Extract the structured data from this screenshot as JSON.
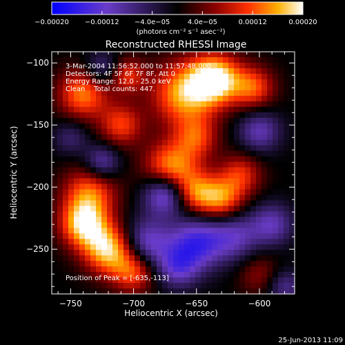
{
  "chart_data": {
    "type": "heatmap",
    "title": "Reconstructed RHESSI Image",
    "xlabel": "Heliocentric X (arcsec)",
    "ylabel": "Heliocentric Y (arcsec)",
    "xlim": [
      -765,
      -572
    ],
    "ylim": [
      -286,
      -91
    ],
    "x_ticks": [
      -750,
      -700,
      -650,
      -600
    ],
    "y_ticks": [
      -250,
      -200,
      -150,
      -100
    ],
    "x_tick_labels": [
      "−750",
      "−700",
      "−650",
      "−600"
    ],
    "y_tick_labels": [
      "−250",
      "−200",
      "−150",
      "−100"
    ],
    "colorbar": {
      "range": [
        -0.0002,
        0.0002
      ],
      "ticks": [
        -0.0002,
        -0.00012,
        -4e-05,
        4e-05,
        0.00012,
        0.0002
      ],
      "tick_labels": [
        "−0.00020",
        "−0.00012",
        "−4.0e−05",
        "4.0e−05",
        "0.00012",
        "0.00020"
      ],
      "units": "(photons cm⁻² s⁻¹ asec⁻²)"
    },
    "colormap": [
      "#0000ff",
      "#6a3cc8",
      "#000000",
      "#7a0000",
      "#ff3000",
      "#ffb000",
      "#ffffff"
    ],
    "annotations": [
      "3-Mar-2004 11:56:52.000 to 11:57:48.000",
      "Detectors: 4F 5F 6F 7F 8F, Att 0",
      "Energy Range: 12.0 - 25.0 keV",
      "Clean    Total counts: 447."
    ],
    "peak_label": "Position of Peak = [-635,-113]",
    "peak_position": [
      -635,
      -113
    ],
    "sources": [
      {
        "x": -635,
        "y": -113,
        "amp": 0.0002,
        "w": 14
      },
      {
        "x": -660,
        "y": -125,
        "amp": 0.00016,
        "w": 18
      },
      {
        "x": -605,
        "y": -120,
        "amp": 0.00012,
        "w": 12
      },
      {
        "x": -740,
        "y": -125,
        "amp": 0.00014,
        "w": 14
      },
      {
        "x": -705,
        "y": -110,
        "amp": 0.0001,
        "w": 10
      },
      {
        "x": -670,
        "y": -185,
        "amp": 0.00016,
        "w": 15
      },
      {
        "x": -650,
        "y": -205,
        "amp": 0.00012,
        "w": 12
      },
      {
        "x": -630,
        "y": -210,
        "amp": 0.00013,
        "w": 12
      },
      {
        "x": -615,
        "y": -190,
        "amp": 0.0001,
        "w": 12
      },
      {
        "x": -710,
        "y": -150,
        "amp": 0.00011,
        "w": 12
      },
      {
        "x": -735,
        "y": -205,
        "amp": 0.00013,
        "w": 15
      },
      {
        "x": -740,
        "y": -230,
        "amp": 0.00017,
        "w": 13
      },
      {
        "x": -720,
        "y": -250,
        "amp": 0.00018,
        "w": 14
      },
      {
        "x": -700,
        "y": -268,
        "amp": 0.00012,
        "w": 12
      },
      {
        "x": -650,
        "y": -160,
        "amp": 0.0001,
        "w": 12
      },
      {
        "x": -600,
        "y": -270,
        "amp": 6e-05,
        "w": 12
      },
      {
        "x": -675,
        "y": -205,
        "amp": -0.00016,
        "w": 12
      },
      {
        "x": -650,
        "y": -245,
        "amp": -0.00014,
        "w": 15
      },
      {
        "x": -690,
        "y": -245,
        "amp": -0.00012,
        "w": 14
      },
      {
        "x": -620,
        "y": -240,
        "amp": -0.0001,
        "w": 14
      },
      {
        "x": -590,
        "y": -230,
        "amp": -0.0001,
        "w": 12
      },
      {
        "x": -725,
        "y": -180,
        "amp": -0.0001,
        "w": 10
      },
      {
        "x": -600,
        "y": -155,
        "amp": -0.0001,
        "w": 12
      },
      {
        "x": -725,
        "y": -105,
        "amp": -8e-05,
        "w": 10
      },
      {
        "x": -665,
        "y": -265,
        "amp": -0.0001,
        "w": 12
      },
      {
        "x": -750,
        "y": -160,
        "amp": -6e-05,
        "w": 10
      },
      {
        "x": -580,
        "y": -280,
        "amp": -8e-05,
        "w": 10
      }
    ]
  },
  "footer": {
    "date": "25-Jun-2013 11:09"
  }
}
